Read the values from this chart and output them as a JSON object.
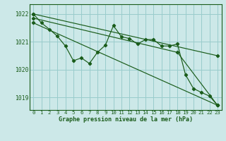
{
  "xlabel": "Graphe pression niveau de la mer (hPa)",
  "bg_color": "#cce8e8",
  "line_color": "#1a5c1a",
  "grid_color": "#99cccc",
  "ylim": [
    1018.55,
    1022.35
  ],
  "xlim": [
    -0.5,
    23.5
  ],
  "yticks": [
    1019,
    1020,
    1021,
    1022
  ],
  "xticks": [
    0,
    1,
    2,
    3,
    4,
    5,
    6,
    7,
    8,
    9,
    10,
    11,
    12,
    13,
    14,
    15,
    16,
    17,
    18,
    19,
    20,
    21,
    22,
    23
  ],
  "y_main": [
    1022.0,
    1021.68,
    1021.45,
    1021.2,
    1020.85,
    1020.32,
    1020.42,
    1020.22,
    1020.62,
    1020.88,
    1021.58,
    1021.18,
    1021.12,
    1020.92,
    1021.08,
    1021.08,
    1020.85,
    1020.85,
    1020.92,
    1019.82,
    1019.32,
    1019.18,
    1019.05,
    1018.72
  ],
  "line3_x": [
    0,
    23
  ],
  "line3_y": [
    1022.0,
    1020.5
  ],
  "line4_x": [
    0,
    18,
    23
  ],
  "line4_y": [
    1021.85,
    1020.62,
    1018.72
  ],
  "line5_x": [
    0,
    23
  ],
  "line5_y": [
    1021.68,
    1018.72
  ]
}
